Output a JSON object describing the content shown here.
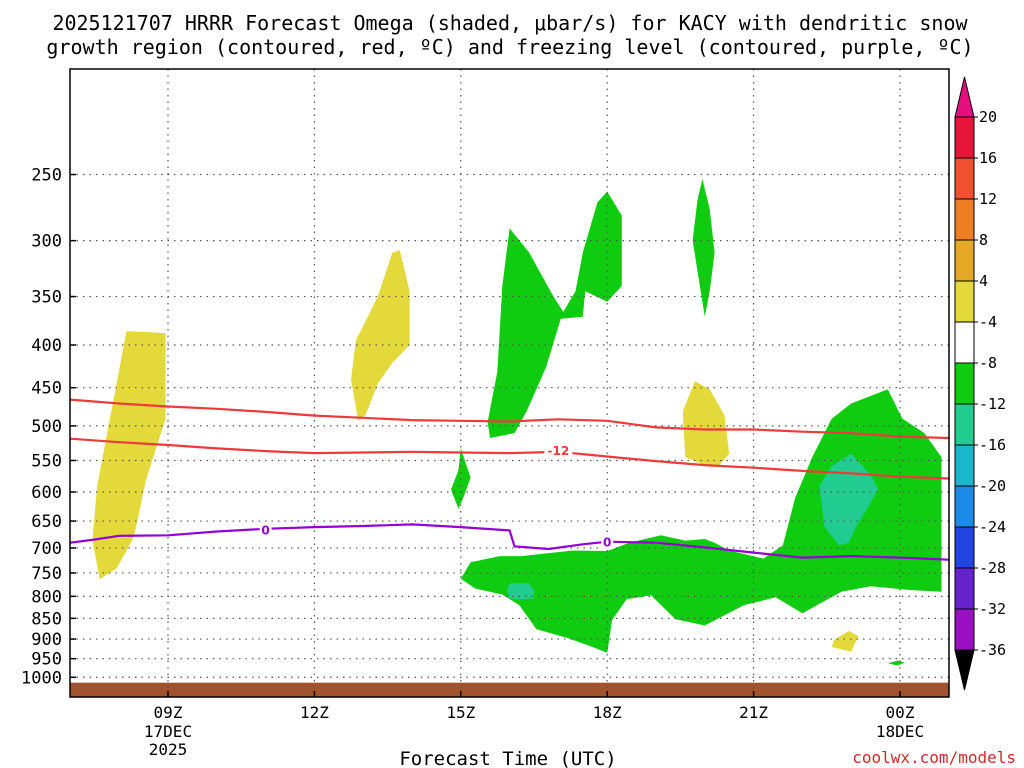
{
  "chart_data": {
    "type": "heatmap",
    "title_line1": "2025121707 HRRR Forecast Omega (shaded, μbar/s) for KACY with dendritic snow",
    "title_line2": "growth region (contoured, red, ºC) and freezing level (contoured, purple, ºC)",
    "xlabel": "Forecast Time (UTC)",
    "ylabel": "",
    "x_range_hours": [
      7,
      25
    ],
    "y_range_hPa": [
      1030,
      190
    ],
    "x_ticks": [
      {
        "hour": 9,
        "label": "09Z",
        "sub1": "17DEC",
        "sub2": "2025"
      },
      {
        "hour": 12,
        "label": "12Z",
        "sub1": "",
        "sub2": ""
      },
      {
        "hour": 15,
        "label": "15Z",
        "sub1": "",
        "sub2": ""
      },
      {
        "hour": 18,
        "label": "18Z",
        "sub1": "",
        "sub2": ""
      },
      {
        "hour": 21,
        "label": "21Z",
        "sub1": "",
        "sub2": ""
      },
      {
        "hour": 24,
        "label": "00Z",
        "sub1": "18DEC",
        "sub2": ""
      }
    ],
    "y_ticks": [
      {
        "p": 250,
        "label": "250"
      },
      {
        "p": 300,
        "label": "300"
      },
      {
        "p": 350,
        "label": "350"
      },
      {
        "p": 400,
        "label": "400"
      },
      {
        "p": 450,
        "label": "450"
      },
      {
        "p": 500,
        "label": "500"
      },
      {
        "p": 550,
        "label": "550"
      },
      {
        "p": 600,
        "label": "600"
      },
      {
        "p": 650,
        "label": "650"
      },
      {
        "p": 700,
        "label": "700"
      },
      {
        "p": 750,
        "label": "750"
      },
      {
        "p": 800,
        "label": "800"
      },
      {
        "p": 850,
        "label": "850"
      },
      {
        "p": 900,
        "label": "900"
      },
      {
        "p": 950,
        "label": "950"
      },
      {
        "p": 1000,
        "label": "1000"
      }
    ],
    "colorbar": {
      "levels": [
        {
          "label": "20",
          "color": "#e8153a"
        },
        {
          "label": "16",
          "color": "#f05030"
        },
        {
          "label": "12",
          "color": "#ee7e22"
        },
        {
          "label": "8",
          "color": "#e4a824"
        },
        {
          "label": "4",
          "color": "#e3d93a"
        },
        {
          "label": "-4",
          "color": "#ffffff"
        },
        {
          "label": "-8",
          "color": "#10cc10"
        },
        {
          "label": "-12",
          "color": "#22cc90"
        },
        {
          "label": "-16",
          "color": "#1ab6cc"
        },
        {
          "label": "-20",
          "color": "#1a8ce8"
        },
        {
          "label": "-24",
          "color": "#2244e0"
        },
        {
          "label": "-28",
          "color": "#6622cc"
        },
        {
          "label": "-32",
          "color": "#9c10c4"
        },
        {
          "label": "-36",
          "color": "#aaaaaa"
        }
      ],
      "top_arrow_color": "#e60f7f",
      "bottom_arrow_color": "#000000"
    },
    "shaded_regions": [
      {
        "value_class": "4 to 8",
        "color": "#e3d93a",
        "outline": [
          [
            7.6,
            763
          ],
          [
            7.45,
            685
          ],
          [
            7.55,
            590
          ],
          [
            7.9,
            460
          ],
          [
            8.15,
            385
          ],
          [
            8.95,
            387
          ],
          [
            8.95,
            490
          ],
          [
            8.55,
            580
          ],
          [
            8.3,
            680
          ],
          [
            7.95,
            740
          ]
        ]
      },
      {
        "value_class": "4 to 8",
        "color": "#e3d93a",
        "outline": [
          [
            12.9,
            493
          ],
          [
            12.75,
            440
          ],
          [
            12.85,
            395
          ],
          [
            13.3,
            350
          ],
          [
            13.6,
            310
          ],
          [
            13.75,
            308
          ],
          [
            13.95,
            345
          ],
          [
            13.95,
            400
          ],
          [
            13.6,
            420
          ],
          [
            13.3,
            445
          ],
          [
            13.05,
            485
          ]
        ]
      },
      {
        "value_class": "4 to 8",
        "color": "#e3d93a",
        "outline": [
          [
            20.1,
            560
          ],
          [
            19.6,
            545
          ],
          [
            19.55,
            480
          ],
          [
            19.8,
            442
          ],
          [
            20.1,
            452
          ],
          [
            20.4,
            485
          ],
          [
            20.5,
            540
          ],
          [
            20.3,
            557
          ]
        ]
      },
      {
        "value_class": "4 to 8",
        "color": "#e3d93a",
        "outline": [
          [
            23.0,
            932
          ],
          [
            22.6,
            920
          ],
          [
            22.65,
            902
          ],
          [
            22.95,
            880
          ],
          [
            23.15,
            893
          ],
          [
            23.05,
            918
          ]
        ]
      },
      {
        "value_class": "-4 to -8",
        "color": "#10cc10",
        "outline": [
          [
            15.6,
            517
          ],
          [
            15.55,
            495
          ],
          [
            15.75,
            430
          ],
          [
            15.85,
            340
          ],
          [
            16.0,
            290
          ],
          [
            16.4,
            310
          ],
          [
            16.9,
            350
          ],
          [
            17.1,
            365
          ],
          [
            17.35,
            345
          ],
          [
            17.5,
            310
          ],
          [
            17.8,
            270
          ],
          [
            18.0,
            262
          ],
          [
            18.3,
            280
          ],
          [
            18.3,
            340
          ],
          [
            18.0,
            355
          ],
          [
            17.55,
            345
          ],
          [
            17.5,
            370
          ],
          [
            17.05,
            372
          ],
          [
            16.75,
            425
          ],
          [
            16.35,
            480
          ],
          [
            16.1,
            510
          ]
        ]
      },
      {
        "value_class": "-4 to -8",
        "color": "#10cc10",
        "outline": [
          [
            19.95,
            355
          ],
          [
            19.75,
            300
          ],
          [
            19.85,
            268
          ],
          [
            19.95,
            253
          ],
          [
            20.1,
            275
          ],
          [
            20.2,
            310
          ],
          [
            20.1,
            345
          ],
          [
            20.0,
            370
          ]
        ]
      },
      {
        "value_class": "-4 to -8",
        "color": "#10cc10",
        "outline": [
          [
            14.95,
            628
          ],
          [
            14.8,
            596
          ],
          [
            14.95,
            565
          ],
          [
            15.0,
            532
          ],
          [
            15.2,
            577
          ],
          [
            15.05,
            610
          ]
        ]
      },
      {
        "value_class": "-4 to -8",
        "color": "#10cc10",
        "outline": [
          [
            15.0,
            762
          ],
          [
            15.2,
            728
          ],
          [
            15.8,
            716
          ],
          [
            16.25,
            716
          ],
          [
            16.8,
            710
          ],
          [
            17.3,
            705
          ],
          [
            18.0,
            706
          ],
          [
            18.45,
            690
          ],
          [
            19.1,
            676
          ],
          [
            19.6,
            686
          ],
          [
            20.0,
            683
          ],
          [
            20.2,
            690
          ],
          [
            20.5,
            705
          ],
          [
            21.2,
            721
          ],
          [
            21.6,
            695
          ],
          [
            21.85,
            610
          ],
          [
            22.2,
            545
          ],
          [
            22.6,
            490
          ],
          [
            23.0,
            470
          ],
          [
            23.75,
            452
          ],
          [
            24.05,
            490
          ],
          [
            24.5,
            510
          ],
          [
            24.85,
            545
          ],
          [
            24.85,
            790
          ],
          [
            24.2,
            786
          ],
          [
            23.4,
            778
          ],
          [
            22.8,
            790
          ],
          [
            22.0,
            838
          ],
          [
            21.45,
            802
          ],
          [
            20.8,
            820
          ],
          [
            20.0,
            867
          ],
          [
            19.4,
            852
          ],
          [
            18.9,
            798
          ],
          [
            18.4,
            806
          ],
          [
            18.1,
            854
          ],
          [
            18.0,
            935
          ],
          [
            17.7,
            920
          ],
          [
            17.2,
            898
          ],
          [
            16.8,
            884
          ],
          [
            16.55,
            876
          ],
          [
            16.2,
            820
          ],
          [
            15.85,
            796
          ],
          [
            15.3,
            783
          ]
        ]
      },
      {
        "value_class": "-8 to -12",
        "color": "#22cc90",
        "outline": [
          [
            22.75,
            695
          ],
          [
            22.45,
            660
          ],
          [
            22.35,
            590
          ],
          [
            22.6,
            558
          ],
          [
            23.0,
            540
          ],
          [
            23.4,
            572
          ],
          [
            23.55,
            595
          ],
          [
            23.35,
            625
          ],
          [
            23.1,
            660
          ],
          [
            22.95,
            690
          ]
        ]
      },
      {
        "value_class": "-8 to -12",
        "color": "#22cc90",
        "outline": [
          [
            16.0,
            804
          ],
          [
            15.95,
            787
          ],
          [
            16.0,
            772
          ],
          [
            16.4,
            772
          ],
          [
            16.5,
            788
          ],
          [
            16.5,
            805
          ],
          [
            16.2,
            806
          ]
        ]
      },
      {
        "value_class": "-4 to -8",
        "color": "#10cc10",
        "outline": [
          [
            23.95,
            968
          ],
          [
            23.75,
            962
          ],
          [
            23.95,
            955
          ],
          [
            24.1,
            960
          ]
        ]
      }
    ],
    "ground": {
      "color": "#a0522d",
      "top_p": 1015
    },
    "contours": [
      {
        "name": "dendritic growth region upper",
        "color": "#ee3a3a",
        "label": "",
        "points": [
          [
            7,
            465
          ],
          [
            8,
            470
          ],
          [
            9,
            474
          ],
          [
            10,
            477
          ],
          [
            11,
            481
          ],
          [
            12,
            486
          ],
          [
            13,
            489
          ],
          [
            14,
            492
          ],
          [
            15,
            493
          ],
          [
            16,
            494
          ],
          [
            17,
            491
          ],
          [
            18,
            493
          ],
          [
            19,
            502
          ],
          [
            20,
            505
          ],
          [
            21,
            505
          ],
          [
            22,
            508
          ],
          [
            23,
            510
          ],
          [
            24,
            515
          ],
          [
            25,
            517
          ]
        ]
      },
      {
        "name": "dendritic growth region lower",
        "color": "#ee3a3a",
        "label": "-12",
        "points": [
          [
            7,
            518
          ],
          [
            8,
            523
          ],
          [
            9,
            527
          ],
          [
            10,
            532
          ],
          [
            11,
            536
          ],
          [
            12,
            539
          ],
          [
            13,
            538
          ],
          [
            14,
            537
          ],
          [
            15,
            538
          ],
          [
            16,
            539
          ],
          [
            17,
            537
          ],
          [
            18,
            544
          ],
          [
            19,
            551
          ],
          [
            20,
            557
          ],
          [
            21,
            561
          ],
          [
            22,
            566
          ],
          [
            23,
            570
          ],
          [
            24,
            575
          ],
          [
            25,
            578
          ]
        ]
      },
      {
        "name": "freezing level",
        "color": "#9400d3",
        "label": "0",
        "points": [
          [
            7,
            690
          ],
          [
            7.5,
            684
          ],
          [
            8,
            677
          ],
          [
            9,
            676
          ],
          [
            10,
            669
          ],
          [
            11,
            664
          ],
          [
            12,
            661
          ],
          [
            13,
            659
          ],
          [
            14,
            656
          ],
          [
            15,
            661
          ],
          [
            16,
            667
          ],
          [
            16.1,
            697
          ],
          [
            16.8,
            702
          ],
          [
            17.5,
            693
          ],
          [
            18,
            688
          ],
          [
            19,
            690
          ],
          [
            20,
            699
          ],
          [
            21,
            709
          ],
          [
            22,
            719
          ],
          [
            23,
            716
          ],
          [
            24,
            719
          ],
          [
            25,
            723
          ]
        ]
      }
    ],
    "contour_labels": [
      {
        "text": "-12",
        "hour": 17.0,
        "p": 535,
        "color": "#ee3a3a"
      },
      {
        "text": "0",
        "hour": 11.0,
        "p": 666,
        "color": "#9400d3"
      },
      {
        "text": "0",
        "hour": 18.0,
        "p": 689,
        "color": "#9400d3"
      }
    ],
    "credit": "coolwx.com/models"
  }
}
